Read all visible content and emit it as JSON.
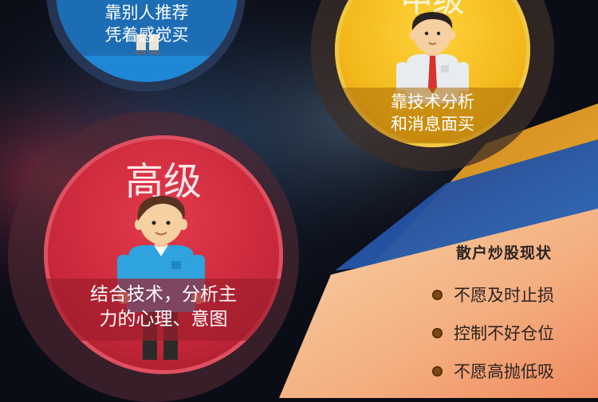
{
  "levels": {
    "beginner": {
      "caption_line1": "靠别人推荐",
      "caption_line2": "凭着感觉买"
    },
    "intermediate": {
      "title": "中级",
      "caption_line1": "靠技术分析",
      "caption_line2": "和消息面买"
    },
    "advanced": {
      "title": "高级",
      "caption_line1": "结合技术，分析主",
      "caption_line2": "力的心理、意图"
    }
  },
  "status": {
    "title": "散户炒股现状",
    "items": [
      "不愿及时止损",
      "控制不好仓位",
      "不愿高抛低吸"
    ]
  },
  "colors": {
    "blue_circle": "#1e88d6",
    "gold_circle": "#f2b81a",
    "red_circle": "#c8283a",
    "panel_orange": "#f5b887",
    "bullet": "#7a4a14"
  }
}
